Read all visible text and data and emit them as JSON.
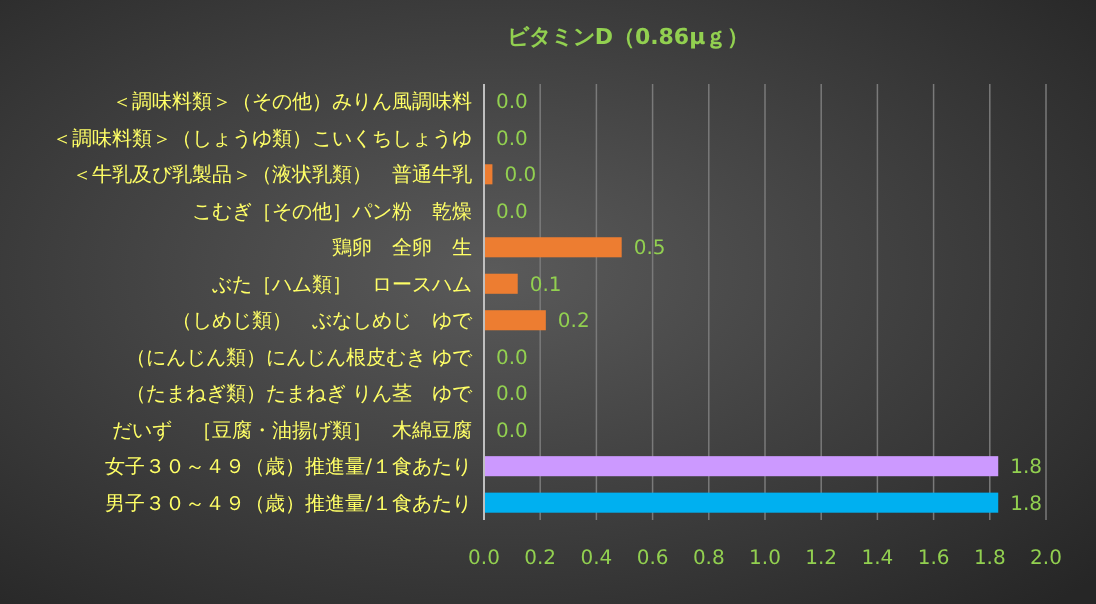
{
  "chart_data": {
    "type": "bar",
    "orientation": "horizontal",
    "title": "ビタミンD（0.86μｇ）",
    "categories": [
      "＜調味料類＞（その他）みりん風調味料",
      "＜調味料類＞（しょうゆ類）こいくちしょうゆ",
      "＜牛乳及び乳製品＞（液状乳類）　普通牛乳",
      "こむぎ［その他］パン粉　乾燥",
      "鶏卵　全卵　生",
      "ぶた［ハム類］　ロースハム",
      "（しめじ類）　ぶなしめじ　ゆで",
      "（にんじん類）にんじん根皮むき ゆで",
      "（たまねぎ類）たまねぎ りん茎　ゆで",
      "だいず　［豆腐・油揚げ類］　木綿豆腐",
      "女子３０～４９（歳）推進量/１食あたり",
      "男子３０～４９（歳）推進量/１食あたり"
    ],
    "values": [
      0,
      0,
      0.03,
      0,
      0.49,
      0.12,
      0.22,
      0,
      0,
      0,
      1.83,
      1.83
    ],
    "colors": [
      "#ed7d31",
      "#ed7d31",
      "#ed7d31",
      "#ed7d31",
      "#ed7d31",
      "#ed7d31",
      "#ed7d31",
      "#ed7d31",
      "#ed7d31",
      "#ed7d31",
      "#cc99ff",
      "#00b0f0"
    ],
    "value_labels": [
      "0.0",
      "0.0",
      "0.0",
      "0.0",
      "0.5",
      "0.1",
      "0.2",
      "0.0",
      "0.0",
      "0.0",
      "1.8",
      "1.8"
    ],
    "xlim": [
      0,
      2
    ],
    "xticks": [
      {
        "value": 0,
        "label": "0.0"
      },
      {
        "value": 0.2,
        "label": "0.2"
      },
      {
        "value": 0.4,
        "label": "0.4"
      },
      {
        "value": 0.6,
        "label": "0.6"
      },
      {
        "value": 0.8,
        "label": "0.8"
      },
      {
        "value": 1,
        "label": "1.0"
      },
      {
        "value": 1.2,
        "label": "1.2"
      },
      {
        "value": 1.4,
        "label": "1.4"
      },
      {
        "value": 1.6,
        "label": "1.6"
      },
      {
        "value": 1.8,
        "label": "1.8"
      },
      {
        "value": 2,
        "label": "2.0"
      }
    ],
    "grid": "x"
  }
}
